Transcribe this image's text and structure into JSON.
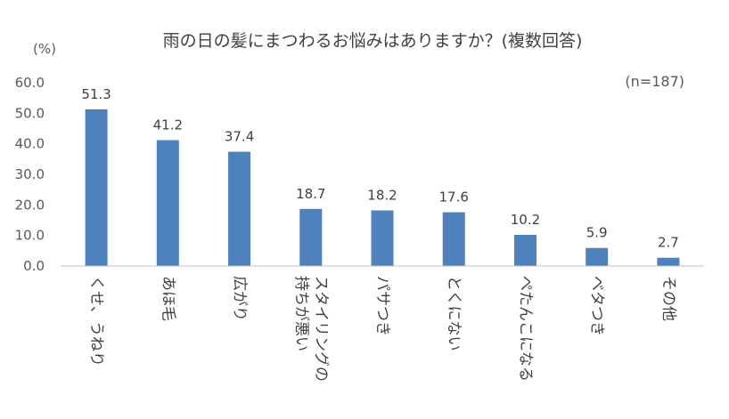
{
  "chart_data": {
    "type": "bar",
    "title": "雨の日の髪にまつわるお悩みはありますか？(複数回答)",
    "ylabel": "(%)",
    "annotation": "(n=187)",
    "ylim": [
      0,
      60
    ],
    "y_ticks": [
      "0.0",
      "10.0",
      "20.0",
      "30.0",
      "40.0",
      "50.0",
      "60.0"
    ],
    "grid": false,
    "bar_color": "#4f81bd",
    "categories": [
      "くせ、うねり",
      "あほ毛",
      "広がり",
      "スタイリングの持ちが悪い",
      "パサつき",
      "とくにない",
      "ぺたんこになる",
      "ベタつき",
      "その他"
    ],
    "category_lines": [
      [
        "くせ、うねり"
      ],
      [
        "あほ毛"
      ],
      [
        "広がり"
      ],
      [
        "スタイリングの",
        "持ちが悪い"
      ],
      [
        "パサつき"
      ],
      [
        "とくにない"
      ],
      [
        "ぺたんこになる"
      ],
      [
        "ベタつき"
      ],
      [
        "その他"
      ]
    ],
    "values": [
      51.3,
      41.2,
      37.4,
      18.7,
      18.2,
      17.6,
      10.2,
      5.9,
      2.7
    ],
    "value_labels": [
      "51.3",
      "41.2",
      "37.4",
      "18.7",
      "18.2",
      "17.6",
      "10.2",
      "5.9",
      "2.7"
    ]
  }
}
